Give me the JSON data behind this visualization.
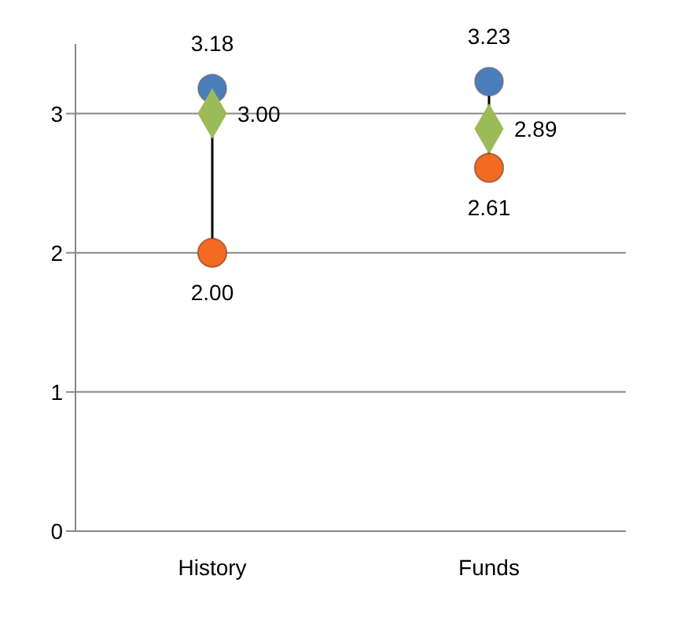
{
  "chart_data": {
    "type": "scatter",
    "categories": [
      "History",
      "Funds"
    ],
    "series": [
      {
        "color": "#4a7ebb",
        "marker": "circle",
        "values": [
          3.18,
          3.23
        ],
        "value_labels": [
          "3.18",
          "3.23"
        ]
      },
      {
        "color": "#9bbb59",
        "marker": "diamond",
        "values": [
          3.0,
          2.89
        ],
        "value_labels": [
          "3.00",
          "2.89"
        ]
      },
      {
        "color": "#f26b21",
        "marker": "circle",
        "values": [
          2.0,
          2.61
        ],
        "value_labels": [
          "2.00",
          "2.61"
        ]
      }
    ],
    "ylim": [
      0,
      3.5
    ],
    "yticks": [
      0,
      1,
      2,
      3
    ],
    "grid": "y",
    "legend": false
  }
}
